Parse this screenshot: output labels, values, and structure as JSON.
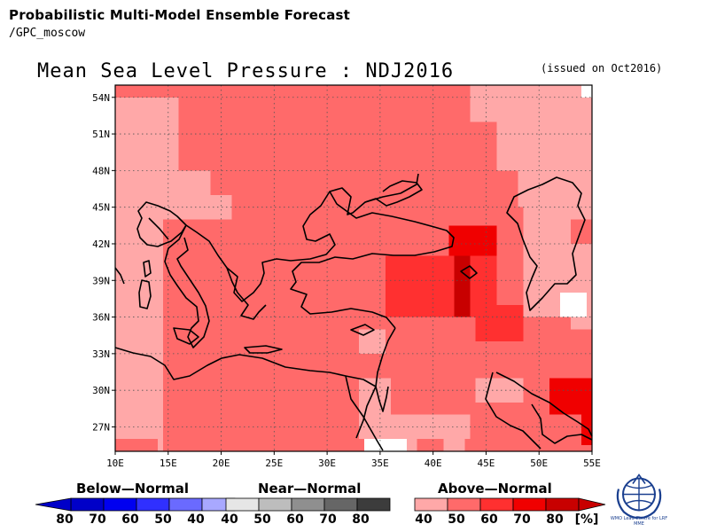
{
  "header": {
    "title": "Probabilistic Multi-Model Ensemble Forecast",
    "subtitle": "/GPC_moscow"
  },
  "map": {
    "title": "Mean Sea Level Pressure : NDJ2016",
    "issued": "(issued on Oct2016)",
    "lon_labels": [
      "10E",
      "15E",
      "20E",
      "25E",
      "30E",
      "35E",
      "40E",
      "45E",
      "50E",
      "55E"
    ],
    "lat_labels": [
      "54N",
      "51N",
      "48N",
      "45N",
      "42N",
      "39N",
      "36N",
      "33N",
      "30N",
      "27N"
    ],
    "lon_range": [
      10,
      55
    ],
    "lat_range": [
      25,
      55
    ],
    "grid_dashed": true,
    "colors": {
      "above_40": "#ffa8a8",
      "above_50": "#ff6a6a",
      "above_60": "#ff3030",
      "above_70": "#f00000",
      "above_80": "#c80000",
      "near": "#ffffff",
      "coast": "#000000"
    }
  },
  "legend": {
    "below": {
      "title": "Below—Normal",
      "values": [
        "80",
        "70",
        "60",
        "50",
        "40"
      ],
      "colors": [
        "#0000c8",
        "#0000f0",
        "#3030ff",
        "#6a6aff",
        "#a8a8ff"
      ]
    },
    "near": {
      "title": "Near—Normal",
      "values": [
        "40",
        "50",
        "60",
        "70",
        "80"
      ],
      "colors": [
        "#e6e6e6",
        "#bdbdbd",
        "#8f8f8f",
        "#666666",
        "#3c3c3c"
      ]
    },
    "above": {
      "title": "Above—Normal",
      "values": [
        "40",
        "50",
        "60",
        "70",
        "80"
      ],
      "unit": "[%]",
      "colors": [
        "#ffa8a8",
        "#ff6a6a",
        "#ff3030",
        "#f00000",
        "#c80000"
      ]
    }
  },
  "logo": {
    "icon": "wmo-globe-icon",
    "caption": "WMO Lead Centre for LRF MME"
  }
}
